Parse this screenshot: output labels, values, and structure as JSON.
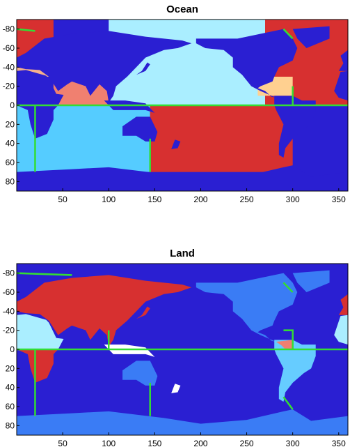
{
  "chart_data": [
    {
      "type": "map",
      "title": "Ocean",
      "xlim": [
        0,
        360
      ],
      "ylim": [
        -90,
        90
      ],
      "xticks": [
        50,
        100,
        150,
        200,
        250,
        300,
        350
      ],
      "yticks": [
        -80,
        -60,
        -40,
        -20,
        0,
        20,
        40,
        60,
        80
      ]
    },
    {
      "type": "map",
      "title": "Land",
      "xlim": [
        0,
        360
      ],
      "ylim": [
        -90,
        90
      ],
      "xticks": [
        50,
        100,
        150,
        200,
        250,
        300,
        350
      ],
      "yticks": [
        -80,
        -60,
        -40,
        -20,
        0,
        20,
        40,
        60,
        80
      ]
    }
  ]
}
